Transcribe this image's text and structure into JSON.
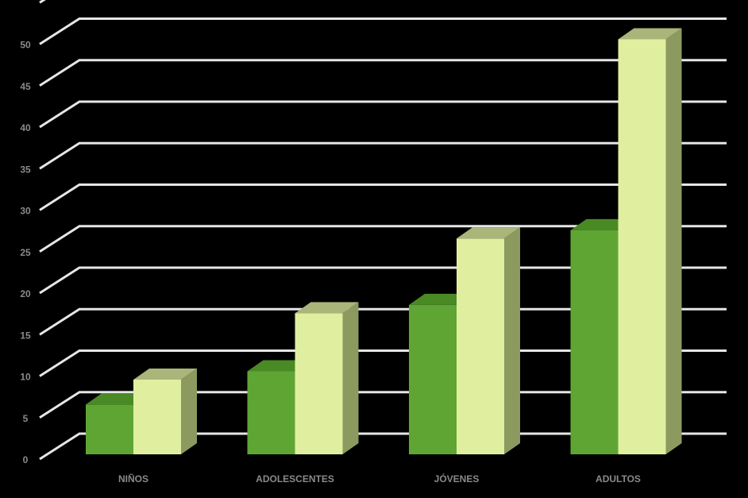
{
  "chart_data": {
    "type": "bar3d",
    "categories": [
      "NIÑOS",
      "ADOLESCENTES",
      "JÓVENES",
      "ADULTOS"
    ],
    "series": [
      {
        "color": "#5fa534",
        "values": [
          6,
          10,
          18,
          27
        ]
      },
      {
        "color": "#e0ef9f",
        "values": [
          9,
          17,
          26,
          50
        ]
      }
    ],
    "ylim": [
      0,
      55
    ],
    "yticks": [
      0,
      5,
      10,
      15,
      20,
      25,
      30,
      35,
      40,
      45,
      50
    ],
    "grid": true
  }
}
